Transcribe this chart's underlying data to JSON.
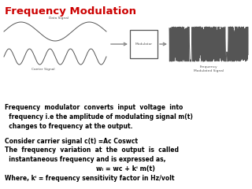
{
  "title": "Frequency Modulation",
  "title_color": "#cc0000",
  "title_fontsize": 9.5,
  "bg_color": "#ffffff",
  "para1": "Frequency  modulator  converts  input  voltage  into\n  frequency i.e the amplitude of modulating signal m(t)\n  changes to frequency at the output.",
  "para2": "Consider carrier signal c(t) =Ac Coswct",
  "para3": "The  frequency  variation  at  the  output  is  called\n  instantaneous frequency and is expressed as,",
  "para4": "wᵢ = wᴄ + kⁱ m(t)",
  "para5": "Where, kⁱ = frequency sensitivity factor in Hz/volt",
  "text_fontsize": 5.5,
  "eq_fontsize": 5.8,
  "diagram_label_fontsize": 3.2,
  "data_signal_label": "Data Signal",
  "carrier_signal_label": "Carrier Signal",
  "modulator_label": "Modulator",
  "output_label": "Frequency\nModulated Signal"
}
